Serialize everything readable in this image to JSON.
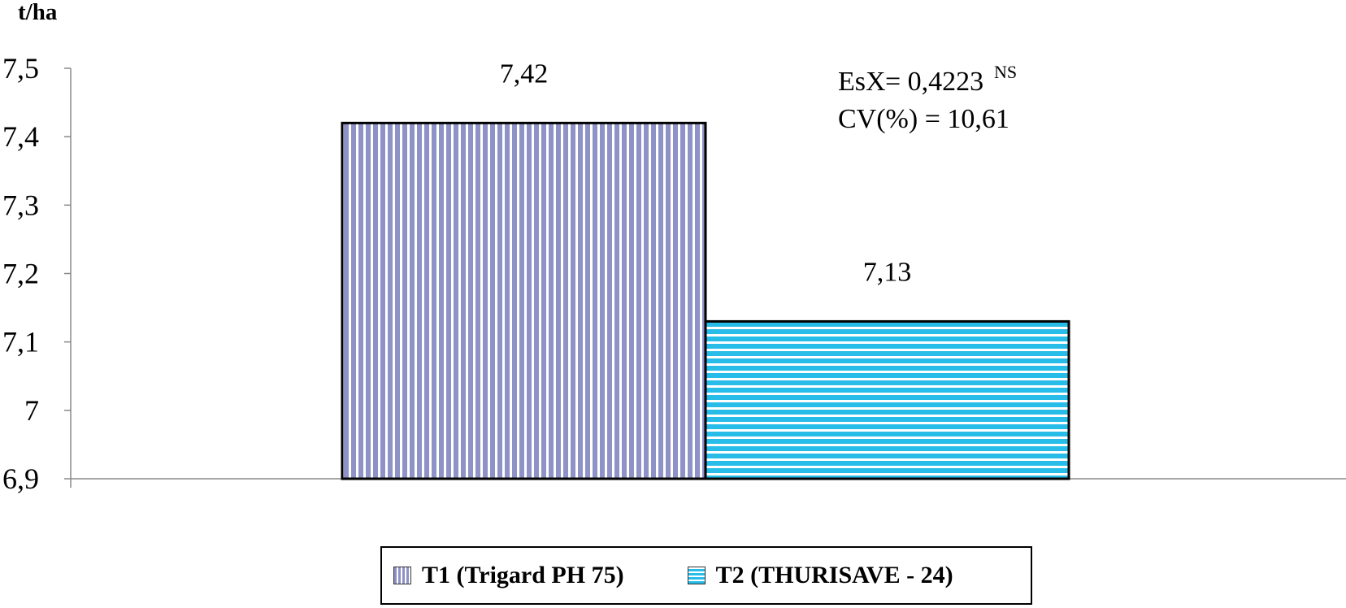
{
  "chart_data": {
    "type": "bar",
    "title": "",
    "xlabel": "",
    "ylabel": "t/ha",
    "ylim": [
      6.9,
      7.5
    ],
    "yticks": [
      {
        "value": 6.9,
        "label": "6,9"
      },
      {
        "value": 7.0,
        "label": "7"
      },
      {
        "value": 7.1,
        "label": "7,1"
      },
      {
        "value": 7.2,
        "label": "7,2"
      },
      {
        "value": 7.3,
        "label": "7,3"
      },
      {
        "value": 7.4,
        "label": "7,4"
      },
      {
        "value": 7.5,
        "label": "7,5"
      }
    ],
    "grid": false,
    "legend_position": "bottom",
    "series": [
      {
        "name": "T1 (Trigard PH 75)",
        "value": 7.42,
        "data_label": "7,42",
        "color": "#8e92c6",
        "pattern": "vertical-stripes"
      },
      {
        "name": "T2 (THURISAVE - 24)",
        "value": 7.13,
        "data_label": "7,13",
        "color": "#27bde8",
        "pattern": "horizontal-stripes"
      }
    ],
    "annotations": {
      "esx": "EsX",
      "esx_value": "= 0,4223",
      "esx_sup": "NS",
      "cv": "CV(%) = 10,61"
    }
  }
}
